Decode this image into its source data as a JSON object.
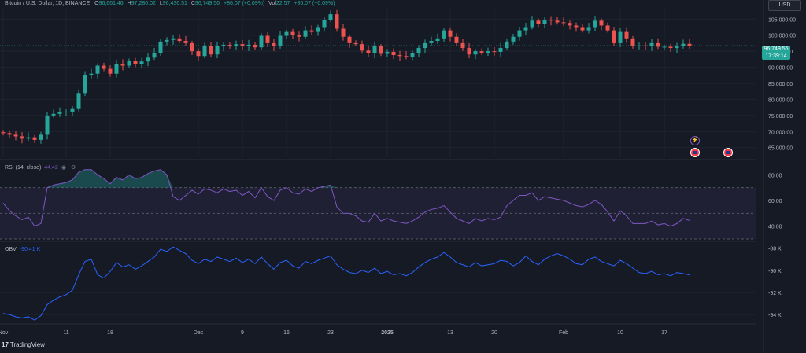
{
  "header": {
    "symbol": "Bitcoin / U.S. Dollar, 1D, BINANCE",
    "ohlc": {
      "o_label": "O",
      "o_value": "96,661.46",
      "h_label": "H",
      "h_value": "97,280.02",
      "l_label": "L",
      "l_value": "96,436.51",
      "c_label": "C",
      "c_value": "96,749.56",
      "change": "+86.07 (+0.09%)"
    },
    "vol_label": "Vol",
    "vol_value": "22.57",
    "vol_change": "+86.07 (+0.09%)",
    "currency": "USD"
  },
  "price_tag": {
    "price": "96,749.56",
    "countdown": "17:39:14"
  },
  "rsi": {
    "label": "RSI (14, close)",
    "value": "44.42"
  },
  "obv": {
    "label": "OBV",
    "value": "-90.41 K"
  },
  "branding": {
    "name": "TradingView"
  },
  "colors": {
    "up": "#26a69a",
    "down": "#ef5350",
    "rsi": "#7e57c2",
    "obv": "#2962ff",
    "bg": "#161a25"
  },
  "icons": [
    "lightning-icon",
    "us-flag-icon"
  ],
  "chart_data": [
    {
      "type": "candlestick",
      "title": "Bitcoin / U.S. Dollar, 1D, BINANCE",
      "ylim": [
        62000,
        108000
      ],
      "y_ticks": [
        "105,000.00",
        "100,000.00",
        "95,000.00",
        "90,000.00",
        "85,000.00",
        "80,000.00",
        "75,000.00",
        "70,000.00",
        "65,000.00"
      ],
      "x_ticks": [
        "Nov",
        "11",
        "18",
        "Dec",
        "9",
        "16",
        "23",
        "2025",
        "13",
        "20",
        "Feb",
        "10",
        "17"
      ],
      "closes": [
        69500,
        69000,
        68500,
        67800,
        68200,
        67400,
        69000,
        75000,
        75500,
        76000,
        76200,
        77000,
        82000,
        87500,
        88000,
        90500,
        89500,
        88000,
        91000,
        90500,
        92000,
        91000,
        91800,
        93000,
        94500,
        98000,
        98500,
        99000,
        98200,
        97500,
        95000,
        93500,
        96500,
        94000,
        96500,
        97000,
        96500,
        97200,
        96500,
        97000,
        96200,
        99800,
        97500,
        96500,
        99800,
        101000,
        100000,
        99500,
        101500,
        101000,
        102500,
        104800,
        106500,
        102000,
        99500,
        97500,
        97200,
        95200,
        94300,
        96500,
        94200,
        94800,
        93800,
        93500,
        93200,
        94500,
        96000,
        97500,
        98200,
        99000,
        101500,
        99500,
        97500,
        96000,
        94000,
        95000,
        94500,
        95000,
        94800,
        96000,
        98000,
        99500,
        101500,
        102500,
        104500,
        103500,
        104800,
        104500,
        104000,
        103800,
        103000,
        102500,
        101500,
        102500,
        104500,
        103000,
        101500,
        97500,
        101000,
        99000,
        96500,
        96800,
        96500,
        97500,
        96400,
        96400,
        96000,
        96500,
        97300,
        96750
      ],
      "series": [
        {
          "name": "Bitcoin / U.S. Dollar"
        }
      ]
    },
    {
      "type": "line",
      "title": "RSI (14, close)",
      "ylim": [
        30,
        90
      ],
      "y_ticks": [
        "80.00",
        "60.00",
        "40.00"
      ],
      "bands": [
        30,
        50,
        70
      ],
      "values": [
        58,
        52,
        48,
        45,
        47,
        40,
        42,
        70,
        72,
        73,
        74,
        76,
        82,
        84,
        84,
        80,
        77,
        73,
        78,
        76,
        80,
        77,
        78,
        81,
        83,
        84,
        80,
        63,
        60,
        64,
        68,
        65,
        69,
        68,
        66,
        69,
        67,
        68,
        64,
        67,
        62,
        70,
        63,
        60,
        68,
        70,
        66,
        65,
        69,
        67,
        70,
        71,
        72,
        55,
        50,
        50,
        48,
        44,
        43,
        50,
        44,
        46,
        44,
        43,
        42,
        44,
        47,
        51,
        53,
        54,
        56,
        51,
        46,
        44,
        42,
        46,
        44,
        46,
        45,
        47,
        56,
        60,
        64,
        64,
        66,
        60,
        63,
        62,
        61,
        60,
        58,
        56,
        55,
        57,
        60,
        57,
        51,
        44,
        52,
        48,
        42,
        42,
        42,
        44,
        41,
        42,
        40,
        42,
        46,
        44.42
      ]
    },
    {
      "type": "line",
      "title": "OBV",
      "y_ticks": [
        "-88 K",
        "-90 K",
        "-92 K",
        "-94 K"
      ],
      "ylim": [
        -94.7,
        -87.6
      ],
      "values": [
        -93.9,
        -94.0,
        -94.2,
        -94.3,
        -94.2,
        -94.5,
        -94.1,
        -93.1,
        -92.7,
        -92.4,
        -92.2,
        -91.8,
        -90.4,
        -89.2,
        -89.0,
        -90.4,
        -90.7,
        -90.1,
        -89.3,
        -89.7,
        -89.5,
        -89.9,
        -89.6,
        -89.2,
        -88.8,
        -88.1,
        -88.3,
        -87.9,
        -88.2,
        -88.5,
        -89.1,
        -89.4,
        -89.0,
        -89.2,
        -88.8,
        -89.0,
        -89.2,
        -88.9,
        -89.3,
        -89.0,
        -89.4,
        -88.8,
        -89.4,
        -89.9,
        -89.3,
        -89.1,
        -89.6,
        -89.8,
        -89.2,
        -89.4,
        -89.1,
        -88.9,
        -88.7,
        -89.5,
        -89.9,
        -90.2,
        -90.3,
        -90.0,
        -90.2,
        -89.8,
        -90.3,
        -90.1,
        -90.4,
        -90.3,
        -90.5,
        -90.2,
        -89.7,
        -89.3,
        -89.0,
        -88.8,
        -88.4,
        -88.8,
        -89.3,
        -89.5,
        -89.7,
        -89.3,
        -89.6,
        -89.5,
        -89.4,
        -89.1,
        -89.2,
        -89.6,
        -89.3,
        -88.7,
        -89.2,
        -89.5,
        -89.0,
        -88.7,
        -88.5,
        -88.7,
        -89.0,
        -89.4,
        -89.5,
        -89.0,
        -88.8,
        -89.2,
        -89.4,
        -89.6,
        -89.1,
        -89.4,
        -89.8,
        -90.2,
        -90.3,
        -90.1,
        -90.4,
        -90.3,
        -90.5,
        -90.2,
        -90.3,
        -90.41
      ]
    }
  ]
}
